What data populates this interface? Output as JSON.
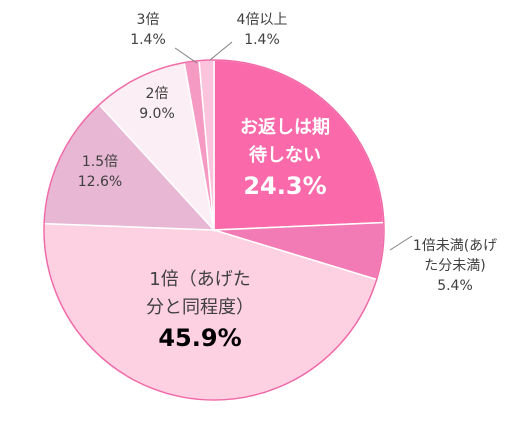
{
  "chart_data": {
    "type": "pie",
    "categories": [
      "お返しは期待しない",
      "1倍未満(あげた分未満)",
      "1倍（あげた分と同程度）",
      "1.5倍",
      "2倍",
      "3倍",
      "4倍以上"
    ],
    "values": [
      24.3,
      5.4,
      45.9,
      12.6,
      9.0,
      1.4,
      1.4
    ],
    "value_labels": [
      "24.3%",
      "5.4%",
      "45.9%",
      "12.6%",
      "9.0%",
      "1.4%",
      "1.4%"
    ],
    "colors": [
      "#fa6aaa",
      "#f27bb5",
      "#fdd0e2",
      "#e7b7d4",
      "#fbeef4",
      "#f59ac3",
      "#fbc4dc"
    ]
  }
}
